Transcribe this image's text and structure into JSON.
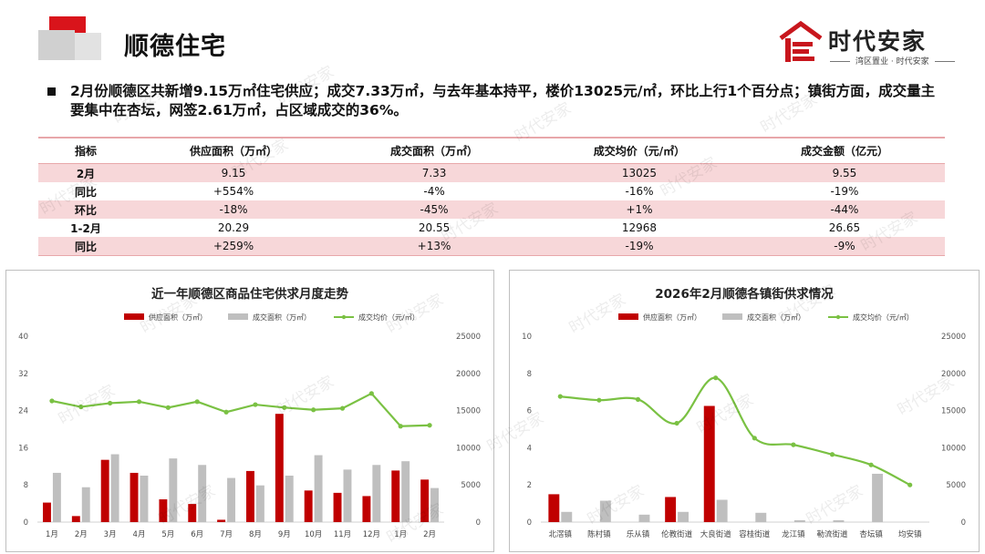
{
  "header": {
    "title": "顺德住宅",
    "brand_name": "时代安家",
    "brand_sub": "湾区置业 · 时代安家"
  },
  "summary": "2月份顺德区共新增9.15万㎡住宅供应；成交7.33万㎡，与去年基本持平，楼价13025元/㎡，环比上行1个百分点；镇街方面，成交量主要集中在杏坛，网签2.61万㎡，占区域成交的36%。",
  "table": {
    "headers": [
      "指标",
      "供应面积（万㎡）",
      "成交面积（万㎡）",
      "成交均价（元/㎡）",
      "成交金额（亿元）"
    ],
    "rows": [
      {
        "label": "2月",
        "cells": [
          "9.15",
          "7.33",
          "13025",
          "9.55"
        ],
        "pink": true
      },
      {
        "label": "同比",
        "cells": [
          "+554%",
          "-4%",
          "-16%",
          "-19%"
        ],
        "pink": false
      },
      {
        "label": "环比",
        "cells": [
          "-18%",
          "-45%",
          "+1%",
          "-44%"
        ],
        "pink": true
      },
      {
        "label": "1-2月",
        "cells": [
          "20.29",
          "20.55",
          "12968",
          "26.65"
        ],
        "pink": false
      },
      {
        "label": "同比",
        "cells": [
          "+259%",
          "+13%",
          "-19%",
          "-9%"
        ],
        "pink": true
      }
    ]
  },
  "watermark": "时代安家",
  "colors": {
    "supply": "#c00000",
    "deal": "#bfbfbf",
    "price": "#7ac143",
    "accent": "#e8a7aa"
  },
  "chart_data": [
    {
      "type": "bar+line",
      "title": "近一年顺德区商品住宅供求月度走势",
      "legend_position": "top",
      "categories": [
        "1月",
        "2月",
        "3月",
        "4月",
        "5月",
        "6月",
        "7月",
        "8月",
        "9月",
        "10月",
        "11月",
        "12月",
        "1月",
        "2月"
      ],
      "series": [
        {
          "name": "供应面积（万㎡）",
          "type": "bar",
          "axis": "left",
          "values": [
            4.2,
            1.3,
            13.4,
            10.6,
            4.9,
            3.9,
            0.5,
            11.0,
            23.3,
            6.8,
            6.3,
            5.6,
            11.1,
            9.15
          ]
        },
        {
          "name": "成交面积（万㎡）",
          "type": "bar",
          "axis": "left",
          "values": [
            10.6,
            7.5,
            14.6,
            10.0,
            13.7,
            12.3,
            9.5,
            7.9,
            10.0,
            14.4,
            11.3,
            12.3,
            13.1,
            7.33
          ]
        },
        {
          "name": "成交均价（元/㎡）",
          "type": "line",
          "axis": "right",
          "values": [
            16300,
            15500,
            16000,
            16200,
            15400,
            16200,
            14800,
            15800,
            15400,
            15100,
            15300,
            17300,
            12900,
            13025
          ]
        }
      ],
      "y_left": {
        "min": 0,
        "max": 40,
        "ticks": [
          0,
          8,
          16,
          24,
          32,
          40
        ]
      },
      "y_right": {
        "min": 0,
        "max": 25000,
        "ticks": [
          0,
          5000,
          10000,
          15000,
          20000,
          25000
        ]
      },
      "smooth": false
    },
    {
      "type": "bar+line",
      "title": "2026年2月顺德各镇街供求情况",
      "legend_position": "top",
      "categories": [
        "北滘镇",
        "陈村镇",
        "乐从镇",
        "伦教街道",
        "大良街道",
        "容桂街道",
        "龙江镇",
        "勒流街道",
        "杏坛镇",
        "均安镇"
      ],
      "series": [
        {
          "name": "供应面积（万㎡）",
          "type": "bar",
          "axis": "left",
          "values": [
            1.5,
            0,
            0,
            1.35,
            6.25,
            0,
            0,
            0,
            0,
            0
          ]
        },
        {
          "name": "成交面积（万㎡）",
          "type": "bar",
          "axis": "left",
          "values": [
            0.55,
            1.15,
            0.4,
            0.55,
            1.2,
            0.5,
            0.1,
            0.1,
            2.6,
            0
          ]
        },
        {
          "name": "成交均价（元/㎡）",
          "type": "line",
          "axis": "right",
          "values": [
            16900,
            16400,
            16500,
            13300,
            19400,
            11300,
            10400,
            9100,
            7700,
            5000
          ]
        }
      ],
      "y_left": {
        "min": 0,
        "max": 10,
        "ticks": [
          0,
          2,
          4,
          6,
          8,
          10
        ]
      },
      "y_right": {
        "min": 0,
        "max": 25000,
        "ticks": [
          0,
          5000,
          10000,
          15000,
          20000,
          25000
        ]
      },
      "smooth": true
    }
  ]
}
